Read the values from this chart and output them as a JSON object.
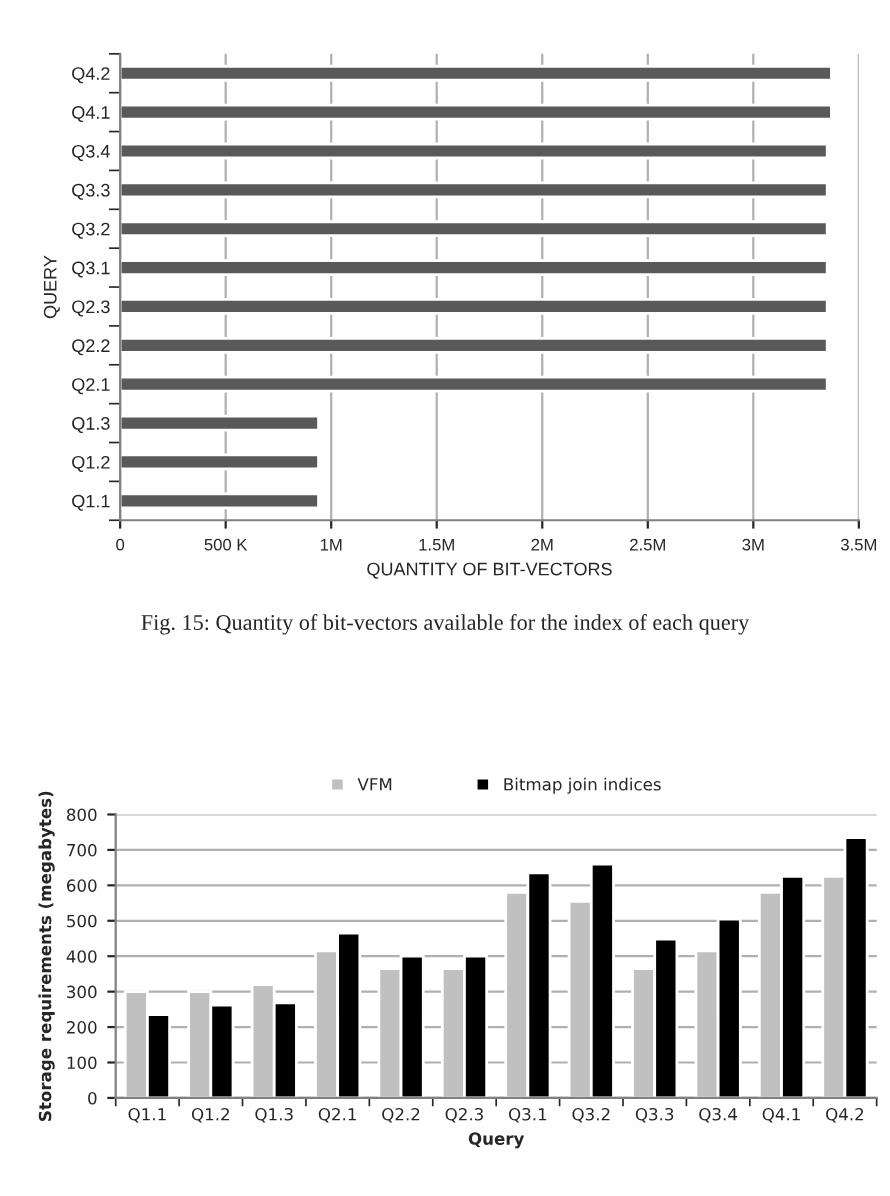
{
  "chart_data": [
    {
      "type": "bar",
      "orientation": "horizontal",
      "xlabel": "QUANTITY OF BIT-VECTORS",
      "ylabel": "QUERY",
      "categories": [
        "Q4.2",
        "Q4.1",
        "Q3.4",
        "Q3.3",
        "Q3.2",
        "Q3.1",
        "Q2.3",
        "Q2.2",
        "Q2.1",
        "Q1.3",
        "Q1.2",
        "Q1.1"
      ],
      "series": [
        {
          "color": "#595959",
          "values": [
            3370000,
            3370000,
            3350000,
            3350000,
            3350000,
            3350000,
            3350000,
            3350000,
            3350000,
            940000,
            940000,
            940000
          ]
        }
      ],
      "xlim": [
        0,
        3500000
      ],
      "xticks": [
        0,
        {
          "value": 500000,
          "label": "500 K"
        },
        {
          "value": 1000000,
          "label": "1M"
        },
        {
          "value": 1500000,
          "label": "1.5M"
        },
        {
          "value": 2000000,
          "label": "2M"
        },
        {
          "value": 2500000,
          "label": "2.5M"
        },
        {
          "value": 3000000,
          "label": "3M"
        },
        {
          "value": 3500000,
          "label": "3.5M"
        }
      ],
      "grid": "x",
      "legend": false,
      "annotations": [
        "Fig. 15: Quantity of bit-vectors available for the index of each query"
      ]
    },
    {
      "type": "bar",
      "xlabel": "Query",
      "ylabel": "Storage requirements (megabytes)",
      "categories": [
        "Q1.1",
        "Q1.2",
        "Q1.3",
        "Q2.1",
        "Q2.2",
        "Q2.3",
        "Q3.1",
        "Q3.2",
        "Q3.3",
        "Q3.4",
        "Q4.1",
        "Q4.2"
      ],
      "series": [
        {
          "name": "VFM",
          "color": "#c0c0c0",
          "values": [
            300,
            300,
            320,
            415,
            365,
            365,
            580,
            555,
            365,
            415,
            580,
            625
          ]
        },
        {
          "name": "Bitmap join indices",
          "color": "#000000",
          "values": [
            235,
            262,
            268,
            465,
            400,
            400,
            635,
            660,
            448,
            505,
            625,
            735
          ]
        }
      ],
      "ylim": [
        0,
        800
      ],
      "yticks": [
        0,
        100,
        200,
        300,
        400,
        500,
        600,
        700,
        800
      ],
      "grid": "y",
      "legend": "top"
    }
  ]
}
